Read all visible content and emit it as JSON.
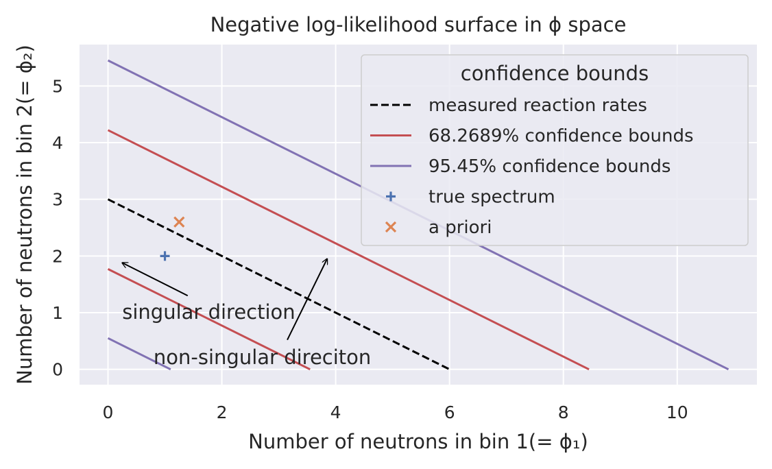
{
  "chart_data": {
    "type": "line",
    "title": "Negative log-likelihood surface in ϕ space",
    "xlabel": "Number of neutrons in bin 1(= ϕ₁)",
    "ylabel": "Number of neutrons in bin 2(= ϕ₂)",
    "xlim": [
      -0.5,
      11.4
    ],
    "ylim": [
      -0.27,
      5.73
    ],
    "xticks": [
      0,
      2,
      4,
      6,
      8,
      10
    ],
    "yticks": [
      0,
      1,
      2,
      3,
      4,
      5
    ],
    "grid": true,
    "legend": {
      "title": "confidence bounds",
      "placement": "top-right"
    },
    "series": [
      {
        "name": "measured reaction rates",
        "kind": "line",
        "style": "dashed",
        "color": "#000000",
        "points": [
          [
            0,
            3.0
          ],
          [
            6.0,
            0
          ]
        ]
      },
      {
        "name": "68.2689% confidence bounds",
        "kind": "line",
        "style": "solid",
        "color": "#c44e52",
        "segments": [
          [
            [
              0,
              4.22
            ],
            [
              8.45,
              0
            ]
          ],
          [
            [
              0,
              1.77
            ],
            [
              3.55,
              0
            ]
          ]
        ]
      },
      {
        "name": "95.45% confidence bounds",
        "kind": "line",
        "style": "solid",
        "color": "#8172b3",
        "segments": [
          [
            [
              0,
              5.45
            ],
            [
              10.9,
              0
            ]
          ],
          [
            [
              0,
              0.55
            ],
            [
              1.1,
              0
            ]
          ]
        ]
      },
      {
        "name": "true spectrum",
        "kind": "scatter",
        "marker": "+",
        "color": "#4c72b0",
        "points": [
          [
            1.0,
            2.0
          ]
        ]
      },
      {
        "name": "a priori",
        "kind": "scatter",
        "marker": "x",
        "color": "#dd8452",
        "points": [
          [
            1.25,
            2.6
          ]
        ]
      }
    ],
    "annotations": [
      {
        "text": "singular direction",
        "text_at": [
          0.25,
          1.0
        ],
        "arrow_from": [
          1.4,
          1.3
        ],
        "arrow_to": [
          0.25,
          1.88
        ]
      },
      {
        "text": "non-singular direciton",
        "text_at": [
          0.8,
          0.2
        ],
        "arrow_from": [
          3.15,
          0.52
        ],
        "arrow_to": [
          3.85,
          1.95
        ]
      }
    ]
  }
}
